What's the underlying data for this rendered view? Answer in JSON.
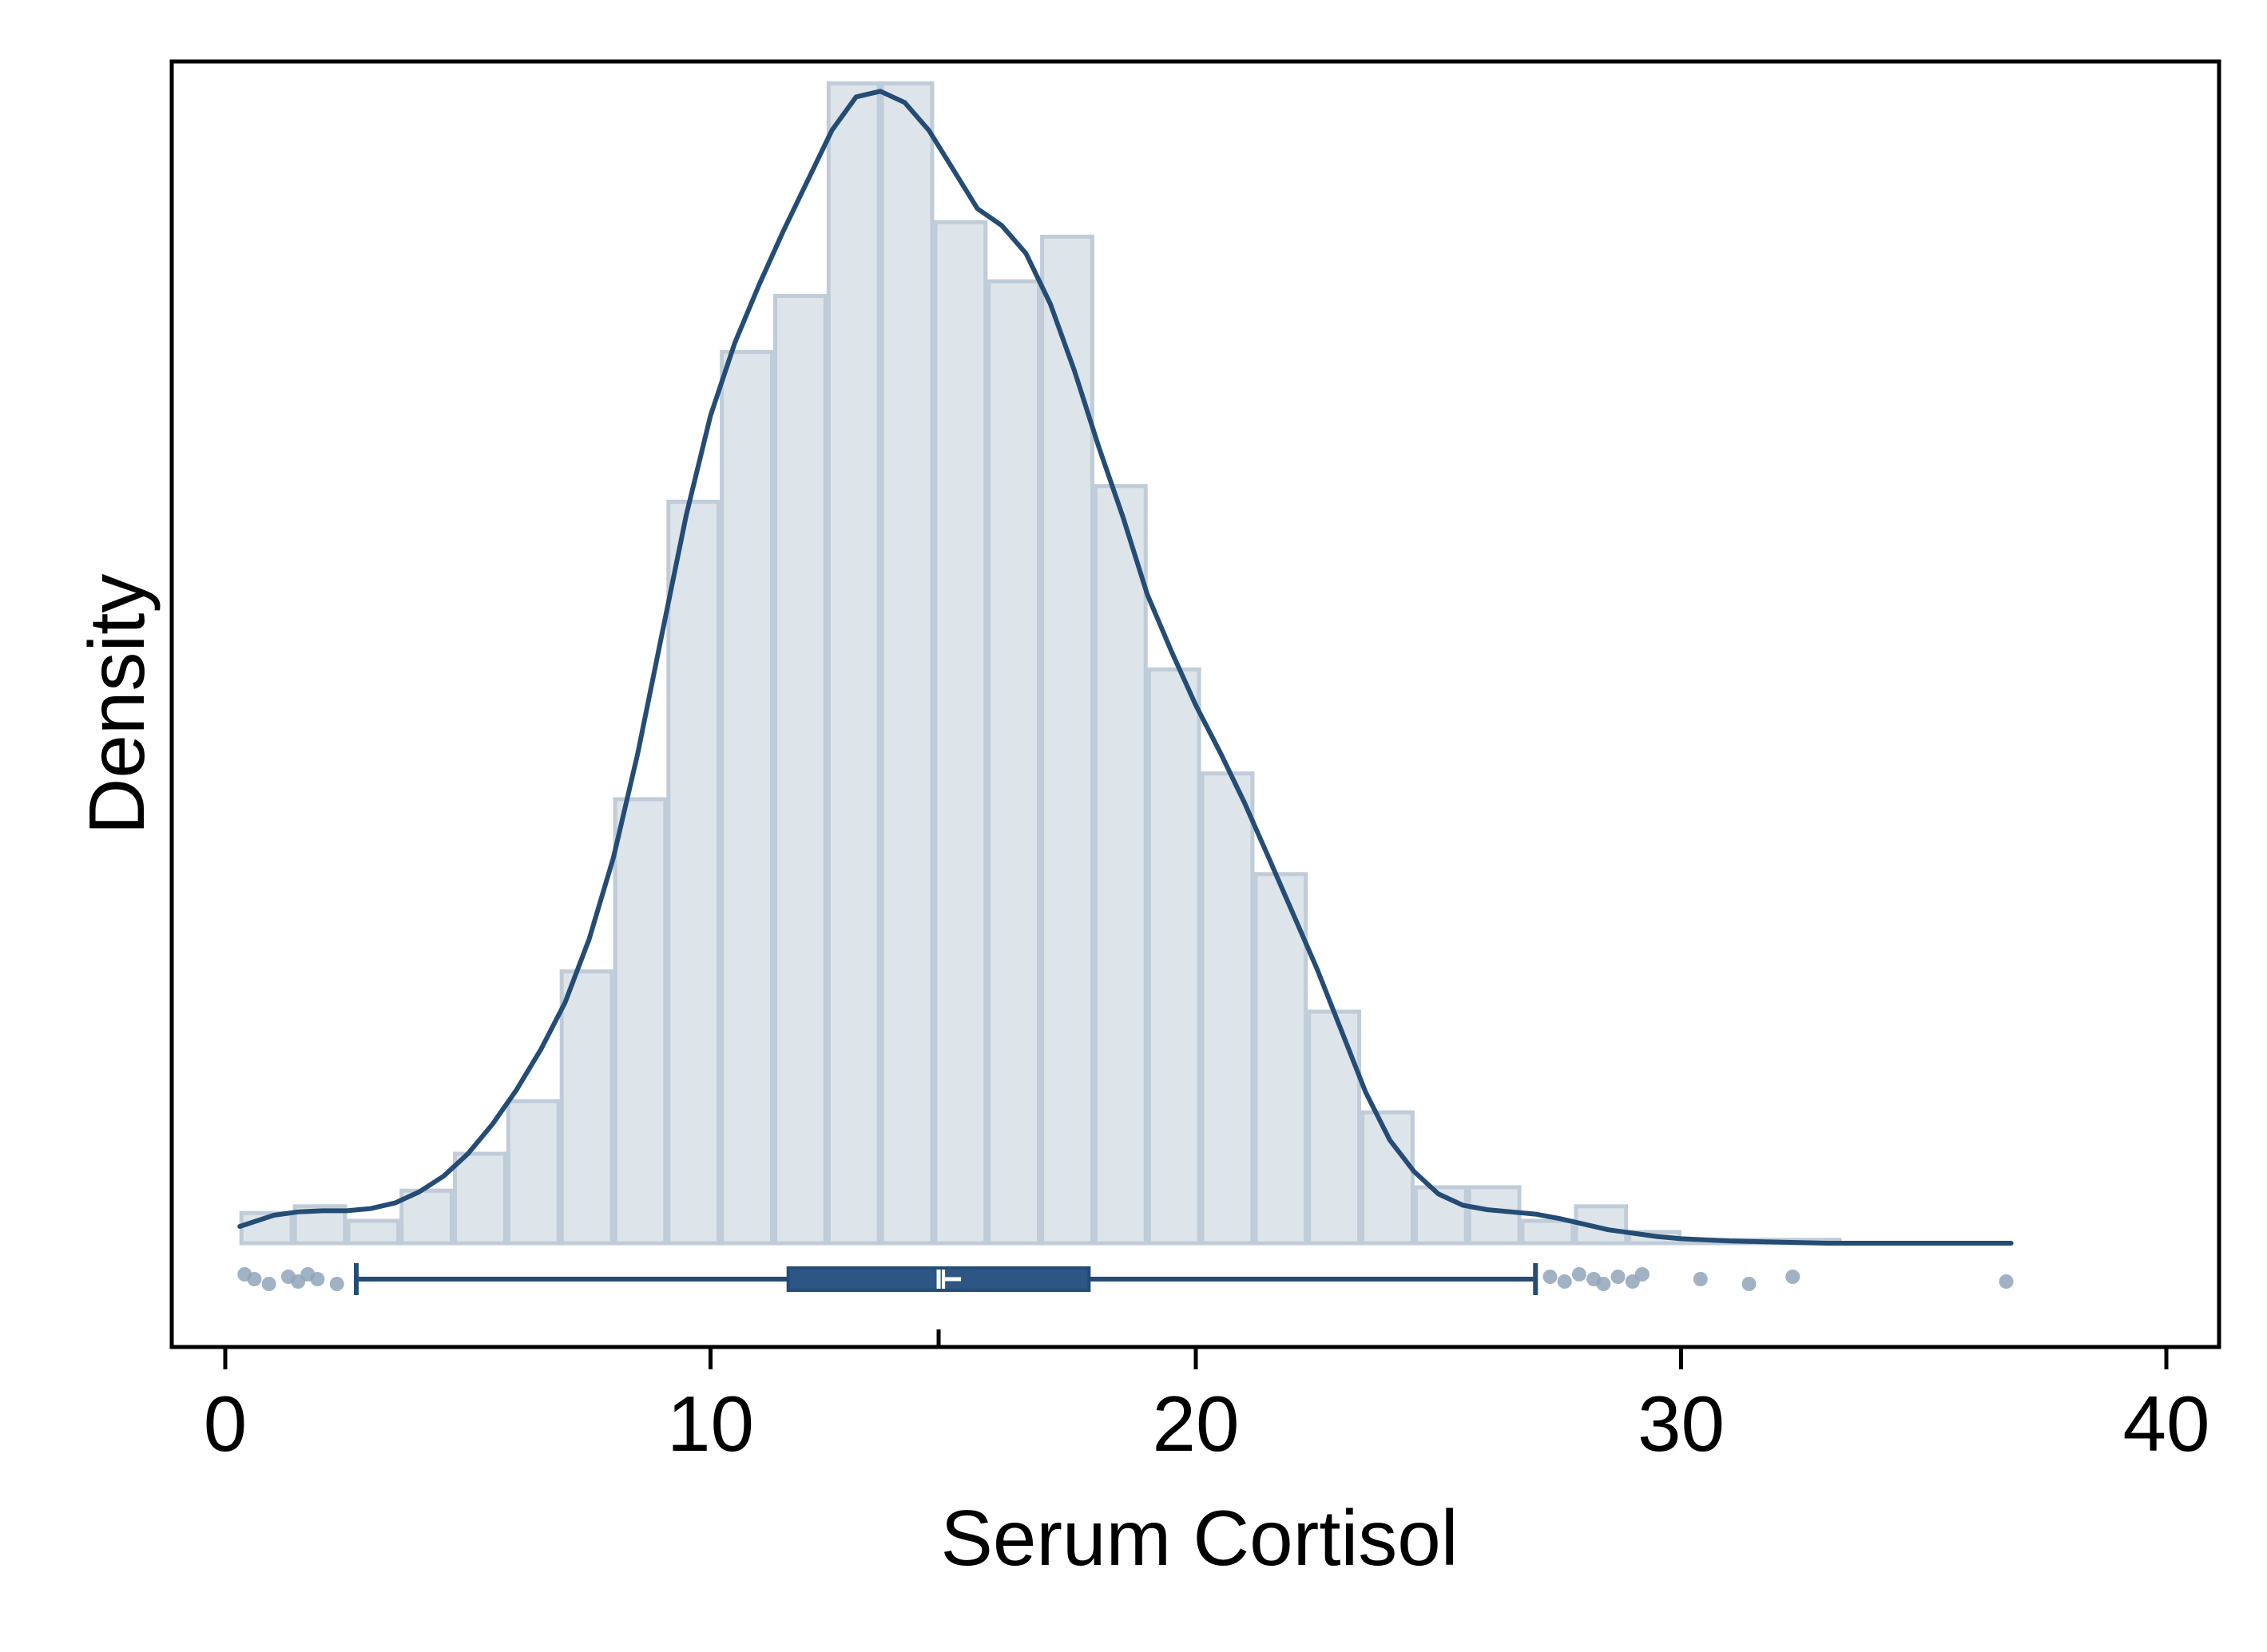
{
  "chart_data": {
    "type": "histogram",
    "xlabel": "Serum Cortisol",
    "ylabel": "Density",
    "xlim": [
      -0.5,
      41.1
    ],
    "ylim": [
      0,
      0.1
    ],
    "x_ticks": [
      0,
      10,
      20,
      30,
      40
    ],
    "grid": false,
    "legend": "none",
    "colors": {
      "bar_fill": "#dde4ea",
      "bar_stroke": "#c0ccd8",
      "kde_line": "#244c74",
      "box_fill": "#2d5684",
      "points": "#8fa4ba",
      "frame": "#000000"
    },
    "histogram": {
      "bin_width": 1.1,
      "bins": [
        {
          "start": 0.3,
          "end": 1.4,
          "density": 0.0027
        },
        {
          "start": 1.4,
          "end": 2.5,
          "density": 0.0033
        },
        {
          "start": 2.5,
          "end": 3.6,
          "density": 0.002
        },
        {
          "start": 3.6,
          "end": 4.7,
          "density": 0.0047
        },
        {
          "start": 4.7,
          "end": 5.8,
          "density": 0.008
        },
        {
          "start": 5.8,
          "end": 6.9,
          "density": 0.0127
        },
        {
          "start": 6.9,
          "end": 8.0,
          "density": 0.0243
        },
        {
          "start": 8.0,
          "end": 9.1,
          "density": 0.0397
        },
        {
          "start": 9.1,
          "end": 10.2,
          "density": 0.0663
        },
        {
          "start": 10.2,
          "end": 11.3,
          "density": 0.0797
        },
        {
          "start": 11.3,
          "end": 12.4,
          "density": 0.0847
        },
        {
          "start": 12.4,
          "end": 13.5,
          "density": 0.1037
        },
        {
          "start": 13.5,
          "end": 14.6,
          "density": 0.1037
        },
        {
          "start": 14.6,
          "end": 15.7,
          "density": 0.0913
        },
        {
          "start": 15.7,
          "end": 16.8,
          "density": 0.086
        },
        {
          "start": 16.8,
          "end": 17.9,
          "density": 0.09
        },
        {
          "start": 17.9,
          "end": 19.0,
          "density": 0.0677
        },
        {
          "start": 19.0,
          "end": 20.1,
          "density": 0.0513
        },
        {
          "start": 20.1,
          "end": 21.2,
          "density": 0.042
        },
        {
          "start": 21.2,
          "end": 22.3,
          "density": 0.033
        },
        {
          "start": 22.3,
          "end": 23.4,
          "density": 0.0207
        },
        {
          "start": 23.4,
          "end": 24.5,
          "density": 0.0117
        },
        {
          "start": 24.5,
          "end": 25.6,
          "density": 0.005
        },
        {
          "start": 25.6,
          "end": 26.7,
          "density": 0.005
        },
        {
          "start": 26.7,
          "end": 27.8,
          "density": 0.002
        },
        {
          "start": 27.8,
          "end": 28.9,
          "density": 0.0033
        },
        {
          "start": 28.9,
          "end": 30.0,
          "density": 0.001
        },
        {
          "start": 30.0,
          "end": 31.1,
          "density": 0.0003
        },
        {
          "start": 31.1,
          "end": 32.2,
          "density": 0.0003
        },
        {
          "start": 32.2,
          "end": 33.3,
          "density": 0.0003
        }
      ]
    },
    "kde": {
      "x": [
        0.3,
        1.0,
        1.5,
        2.0,
        2.5,
        3.0,
        3.5,
        4.0,
        4.5,
        5.0,
        5.5,
        6.0,
        6.5,
        7.0,
        7.5,
        8.0,
        8.5,
        9.0,
        9.5,
        10.0,
        10.5,
        11.0,
        11.5,
        12.0,
        12.5,
        13.0,
        13.5,
        14.0,
        14.5,
        15.0,
        15.5,
        16.0,
        16.5,
        17.0,
        17.5,
        18.0,
        18.5,
        19.0,
        19.5,
        20.0,
        20.5,
        21.0,
        21.5,
        22.0,
        22.5,
        23.0,
        23.5,
        24.0,
        24.5,
        25.0,
        25.5,
        26.0,
        26.5,
        27.0,
        27.5,
        28.0,
        28.5,
        29.0,
        29.5,
        30.0,
        31.0,
        32.0,
        33.0,
        34.0,
        35.0,
        36.0,
        36.8
      ],
      "y": [
        0.0015,
        0.0025,
        0.0028,
        0.0029,
        0.0029,
        0.0031,
        0.0036,
        0.0046,
        0.006,
        0.008,
        0.0106,
        0.0137,
        0.0173,
        0.0215,
        0.0272,
        0.0345,
        0.0438,
        0.0545,
        0.0651,
        0.074,
        0.0805,
        0.0857,
        0.0905,
        0.095,
        0.0995,
        0.1025,
        0.103,
        0.102,
        0.0995,
        0.096,
        0.0925,
        0.091,
        0.0885,
        0.084,
        0.078,
        0.0712,
        0.0649,
        0.058,
        0.0529,
        0.0481,
        0.0439,
        0.0394,
        0.0345,
        0.0295,
        0.0245,
        0.019,
        0.0135,
        0.0092,
        0.0064,
        0.0044,
        0.0034,
        0.003,
        0.0028,
        0.0026,
        0.0022,
        0.0017,
        0.0012,
        0.0009,
        0.0006,
        0.0004,
        0.0002,
        0.0001,
        0.0,
        0.0,
        0.0,
        0.0,
        0.0
      ]
    },
    "boxplot": {
      "whisker_low": 2.7,
      "q1": 11.6,
      "median": 14.7,
      "mean": 14.8,
      "q3": 17.8,
      "whisker_high": 27.0,
      "outliers": [
        0.4,
        0.6,
        0.9,
        1.3,
        1.5,
        1.7,
        1.9,
        2.3,
        27.3,
        27.6,
        27.9,
        28.2,
        28.4,
        28.7,
        29.0,
        29.2,
        30.4,
        31.4,
        32.3,
        36.7
      ]
    }
  }
}
